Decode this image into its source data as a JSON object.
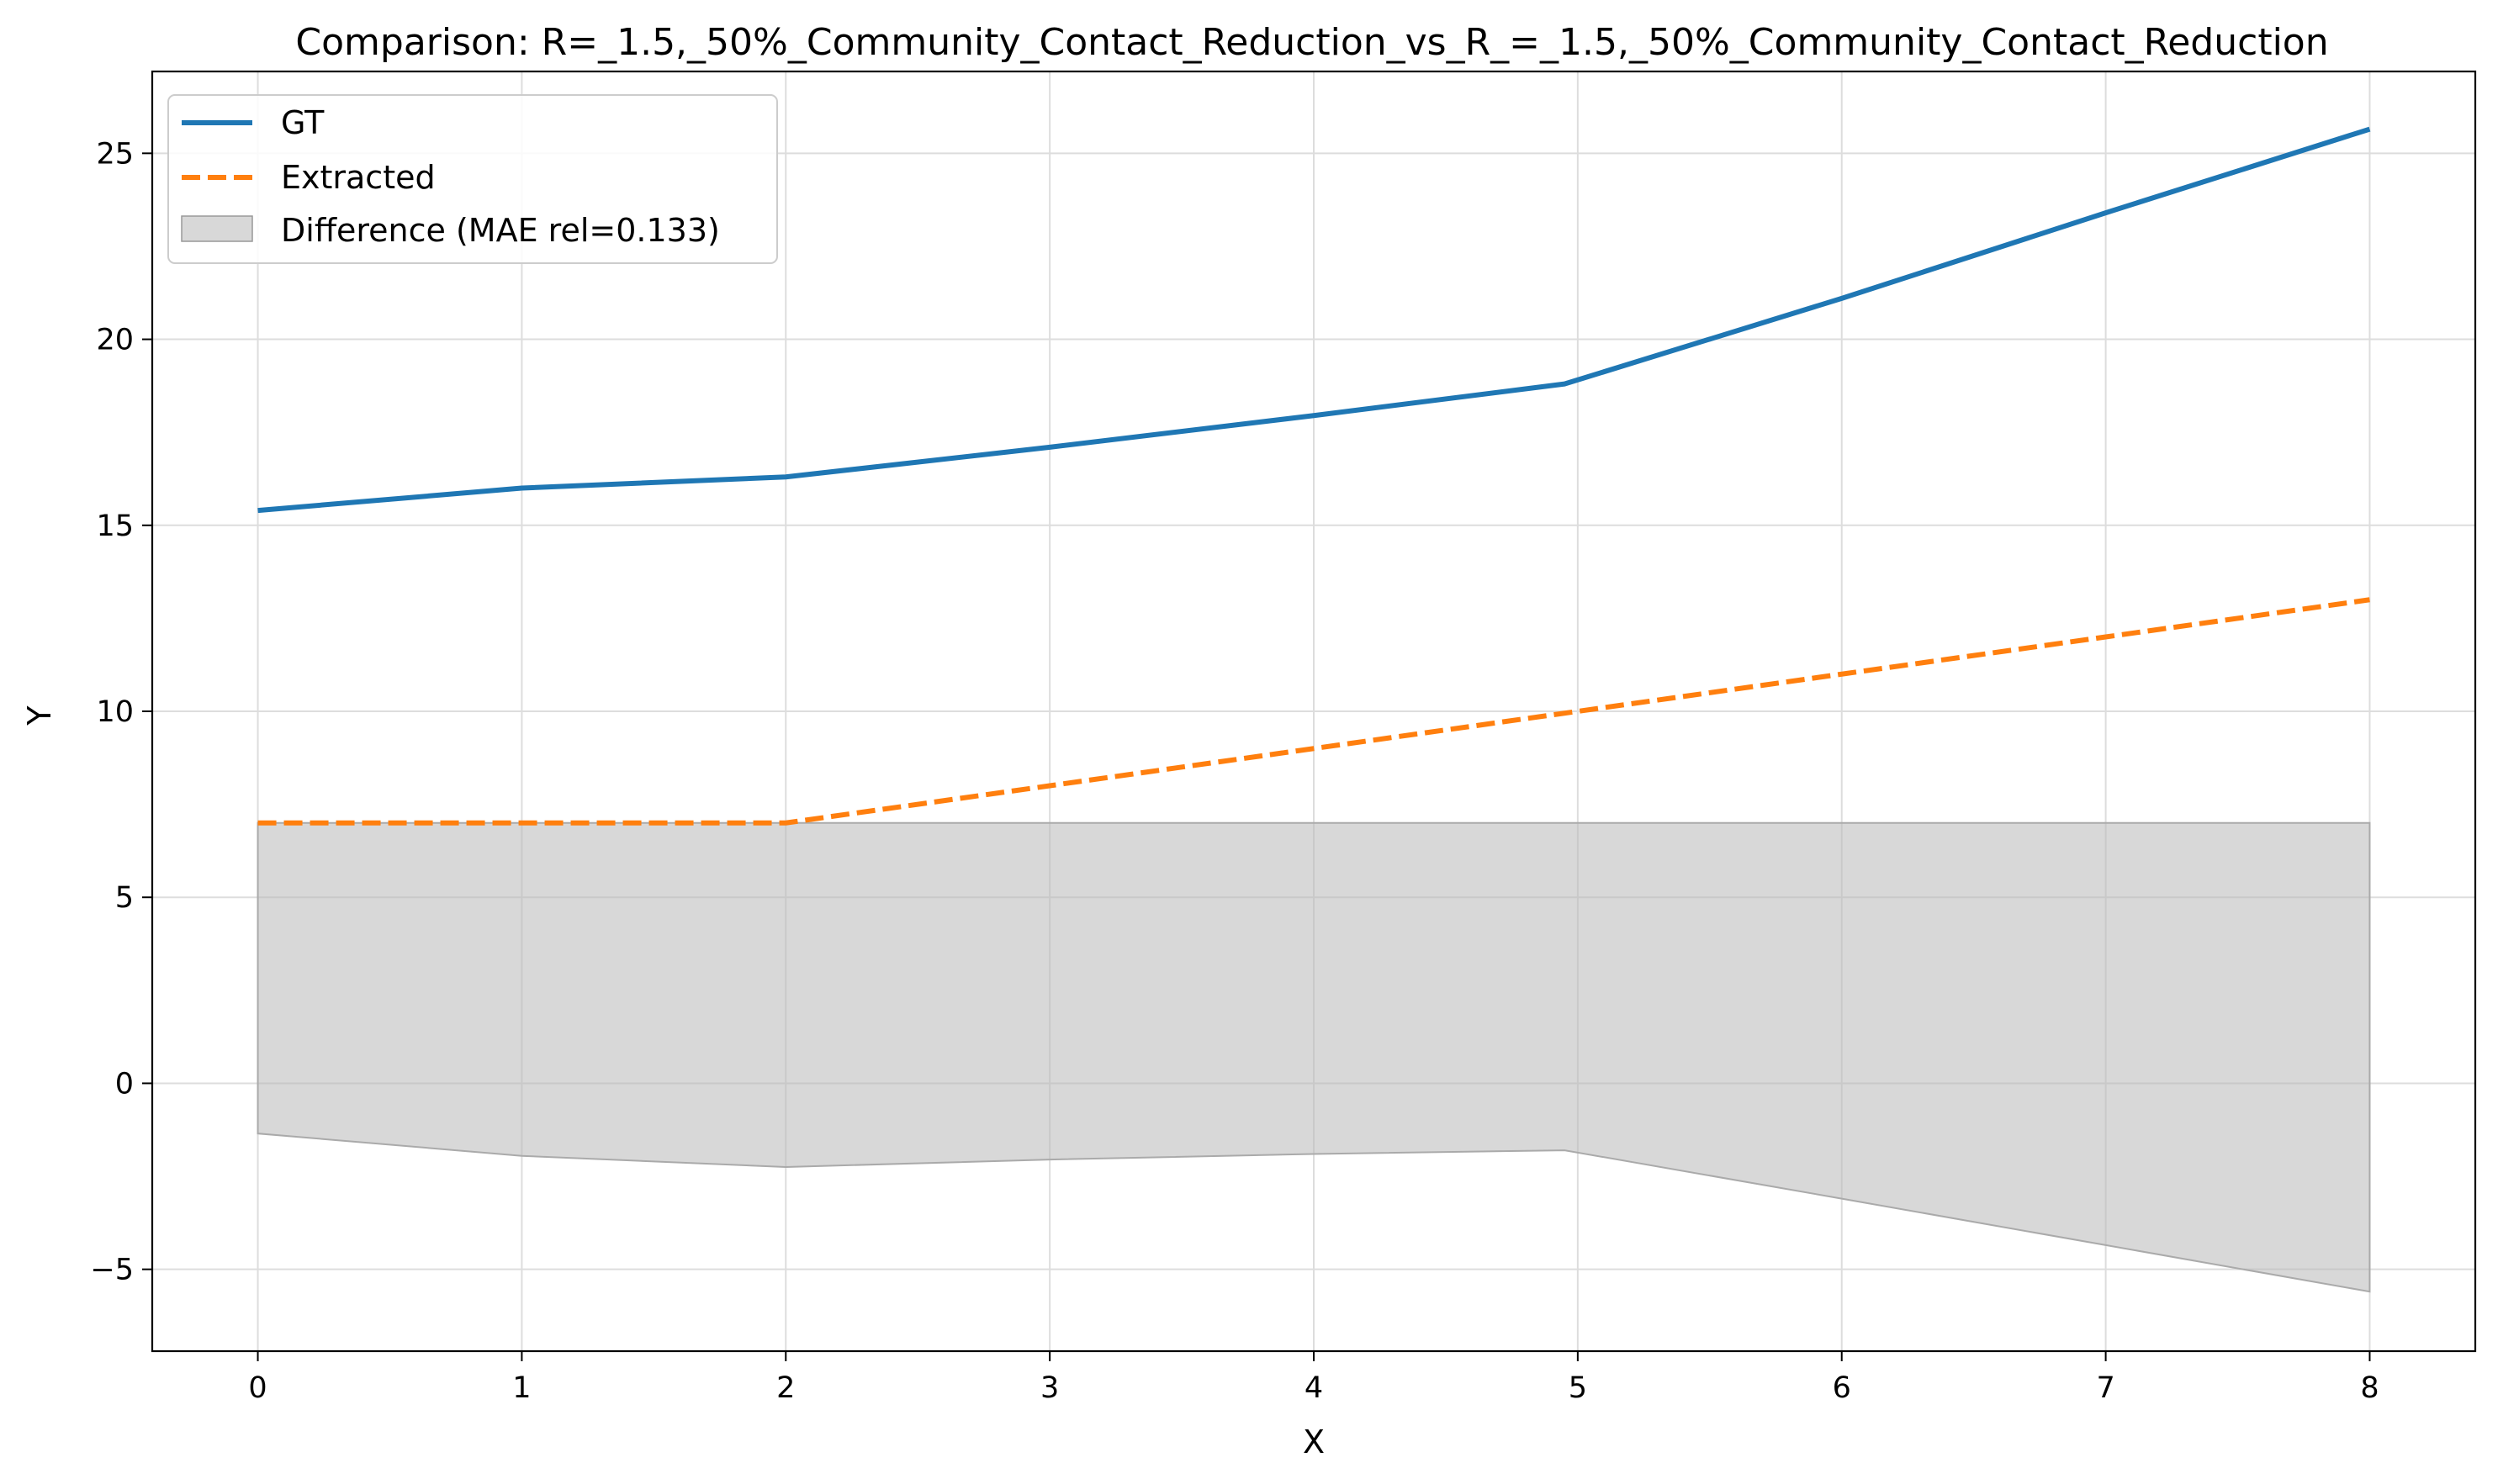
{
  "chart_data": {
    "type": "line",
    "title": "Comparison: R=_1.5,_50%_Community_Contact_Reduction_vs_R_=_1.5,_50%_Community_Contact_Reduction",
    "xlabel": "X",
    "ylabel": "Y",
    "xlim": [
      -0.4,
      8.4
    ],
    "ylim": [
      -7.2,
      27.2
    ],
    "xticks": [
      0,
      1,
      2,
      3,
      4,
      5,
      6,
      7,
      8
    ],
    "yticks": [
      -5,
      0,
      5,
      10,
      15,
      20,
      25
    ],
    "ytick_labels": [
      "−5",
      "0",
      "5",
      "10",
      "15",
      "20",
      "25"
    ],
    "grid": true,
    "legend_position": "top-left",
    "series": [
      {
        "name": "GT",
        "style": "solid",
        "color": "#1f77b4",
        "x": [
          0,
          1,
          2,
          3,
          4,
          4.95,
          6,
          7,
          8
        ],
        "y": [
          15.4,
          16.0,
          16.3,
          17.1,
          17.95,
          18.8,
          21.1,
          23.4,
          25.65
        ]
      },
      {
        "name": "Extracted",
        "style": "dashed",
        "color": "#ff7f0e",
        "x": [
          0,
          1,
          2,
          3,
          4,
          5,
          6,
          7,
          8
        ],
        "y": [
          7,
          7,
          7,
          8,
          9,
          10,
          11,
          12,
          13
        ]
      }
    ],
    "fill": {
      "name": "Difference (MAE rel=0.133)",
      "color": "#bbbbbb",
      "x": [
        0,
        1,
        2,
        3,
        4,
        4.95,
        6,
        7,
        8
      ],
      "upper": [
        7,
        7,
        7,
        7,
        7,
        7,
        7,
        7,
        7
      ],
      "lower": [
        -1.35,
        -1.95,
        -2.25,
        -2.05,
        -1.9,
        -1.8,
        -3.1,
        -4.35,
        -5.6
      ]
    }
  }
}
